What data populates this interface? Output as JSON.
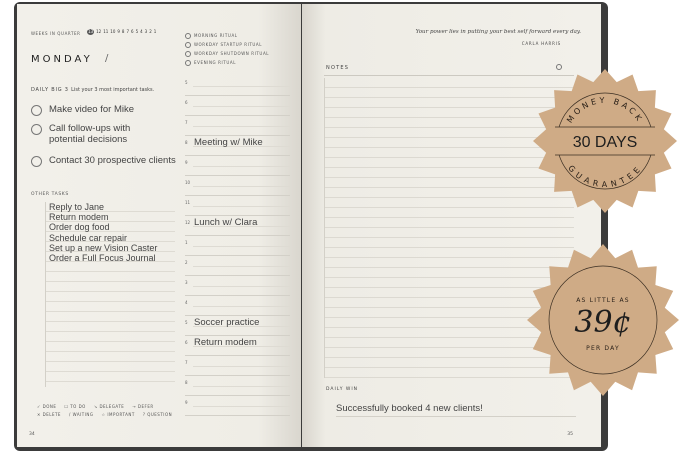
{
  "left_page": {
    "weeks_label": "Weeks in quarter",
    "weeks": [
      "13",
      "12",
      "11",
      "10",
      "9",
      "8",
      "7",
      "6",
      "5",
      "4",
      "3",
      "2",
      "1"
    ],
    "day": "MONDAY",
    "date_sep": "/",
    "rituals": [
      "Morning ritual",
      "Workday startup ritual",
      "Workday shutdown ritual",
      "Evening ritual"
    ],
    "big3_label": "DAILY BIG 3",
    "big3_hint": "List your 3 most important tasks.",
    "big3": [
      "Make video for Mike",
      "Call follow-ups with\npotential decisions",
      "Contact 30 prospective clients"
    ],
    "other_label": "OTHER TASKS",
    "other_tasks": [
      "Reply to Jane",
      "Return modem",
      "Order dog food",
      "Schedule car repair",
      "Set up a new Vision Caster",
      "Order a Full Focus Journal"
    ],
    "hours": [
      "5",
      "6",
      "7",
      "8",
      "9",
      "10",
      "11",
      "12",
      "1",
      "2",
      "3",
      "4",
      "5",
      "6",
      "7",
      "8",
      "9"
    ],
    "schedule": {
      "8": "Meeting w/ Mike",
      "12": "Lunch w/ Clara",
      "5pm": "Soccer practice",
      "6pm": "Return modem"
    },
    "legend": [
      "✓ DONE",
      "☐ TO DO",
      "↘ DELEGATE",
      "→ DEFER",
      "✕ DELETE",
      "/ WAITING",
      "☆ IMPORTANT",
      "? QUESTION"
    ],
    "page_number": "34"
  },
  "right_page": {
    "quote": "Your power lies in putting your best self forward every day.",
    "author": "CARLA HARRIS",
    "notes_label": "NOTES",
    "daily_win_label": "DAILY WIN",
    "daily_win": "Successfully booked 4 new clients!",
    "page_number": "35"
  },
  "badges": {
    "color": "#cfab86",
    "guarantee": {
      "top": "MONEY BACK",
      "main": "30 DAYS",
      "bottom": "GUARANTEE"
    },
    "price": {
      "top": "AS LITTLE AS",
      "main": "39¢",
      "bottom": "PER DAY"
    }
  }
}
